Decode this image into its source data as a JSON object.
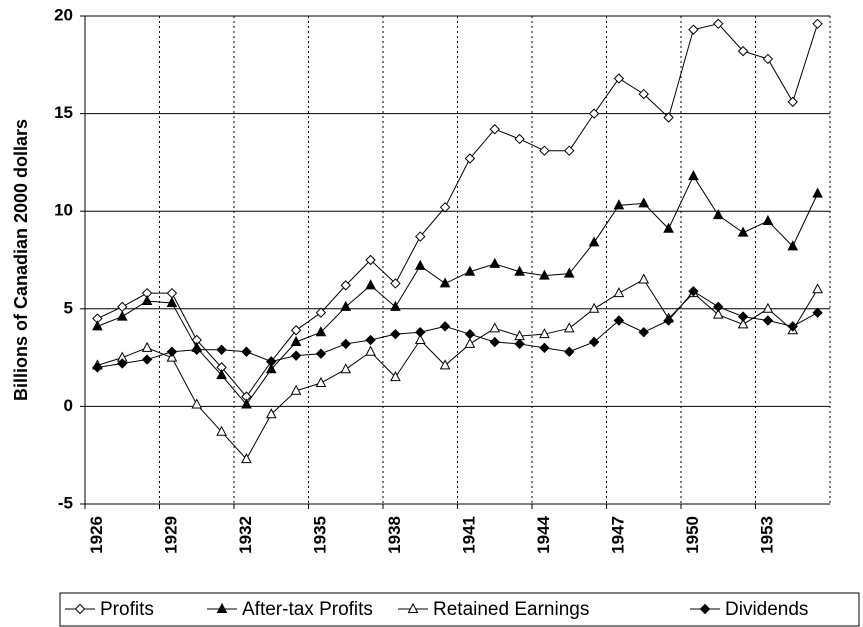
{
  "chart_data": {
    "type": "line",
    "y_label": "Billions of Canadian 2000 dollars",
    "categories": [
      "1926",
      null,
      null,
      "1929",
      null,
      null,
      "1932",
      null,
      null,
      "1935",
      null,
      null,
      "1938",
      null,
      null,
      "1941",
      null,
      null,
      "1944",
      null,
      null,
      "1947",
      null,
      null,
      "1950",
      null,
      null,
      "1953",
      null,
      null
    ],
    "series": [
      {
        "name": "Profits",
        "color": "#000000",
        "marker": "diamond",
        "filled": false,
        "values": [
          4.5,
          5.1,
          5.8,
          5.8,
          3.4,
          2.0,
          0.5,
          2.3,
          3.9,
          4.8,
          6.2,
          7.5,
          6.3,
          8.7,
          10.2,
          12.7,
          14.2,
          13.7,
          13.1,
          13.1,
          15.0,
          16.8,
          16.0,
          14.8,
          19.3,
          19.6,
          18.2,
          17.8,
          15.6,
          19.6
        ]
      },
      {
        "name": "After-tax Profits",
        "color": "#000000",
        "marker": "triangle",
        "filled": true,
        "values": [
          4.1,
          4.6,
          5.4,
          5.3,
          3.0,
          1.6,
          0.1,
          1.9,
          3.3,
          3.8,
          5.1,
          6.2,
          5.1,
          7.2,
          6.3,
          6.9,
          7.3,
          6.9,
          6.7,
          6.8,
          8.4,
          10.3,
          10.4,
          9.1,
          11.8,
          9.8,
          8.9,
          9.5,
          8.2,
          10.9
        ]
      },
      {
        "name": "Retained Earnings",
        "color": "#000000",
        "marker": "triangle",
        "filled": false,
        "values": [
          2.1,
          2.5,
          3.0,
          2.5,
          0.1,
          -1.3,
          -2.7,
          -0.4,
          0.8,
          1.2,
          1.9,
          2.8,
          1.5,
          3.4,
          2.1,
          3.2,
          4.0,
          3.6,
          3.7,
          4.0,
          5.0,
          5.8,
          6.5,
          4.5,
          5.8,
          4.7,
          4.2,
          5.0,
          3.9,
          6.0
        ]
      },
      {
        "name": "Dividends",
        "color": "#000000",
        "marker": "diamond",
        "filled": true,
        "values": [
          2.0,
          2.2,
          2.4,
          2.8,
          2.9,
          2.9,
          2.8,
          2.3,
          2.6,
          2.7,
          3.2,
          3.4,
          3.7,
          3.8,
          4.1,
          3.7,
          3.3,
          3.2,
          3.0,
          2.8,
          3.3,
          4.4,
          3.8,
          4.4,
          5.9,
          5.1,
          4.6,
          4.4,
          4.1,
          4.8
        ]
      }
    ],
    "ylim": [
      -5,
      20
    ],
    "yticks": [
      -5,
      0,
      5,
      10,
      15,
      20
    ],
    "grid": true,
    "legend": "bottom"
  }
}
